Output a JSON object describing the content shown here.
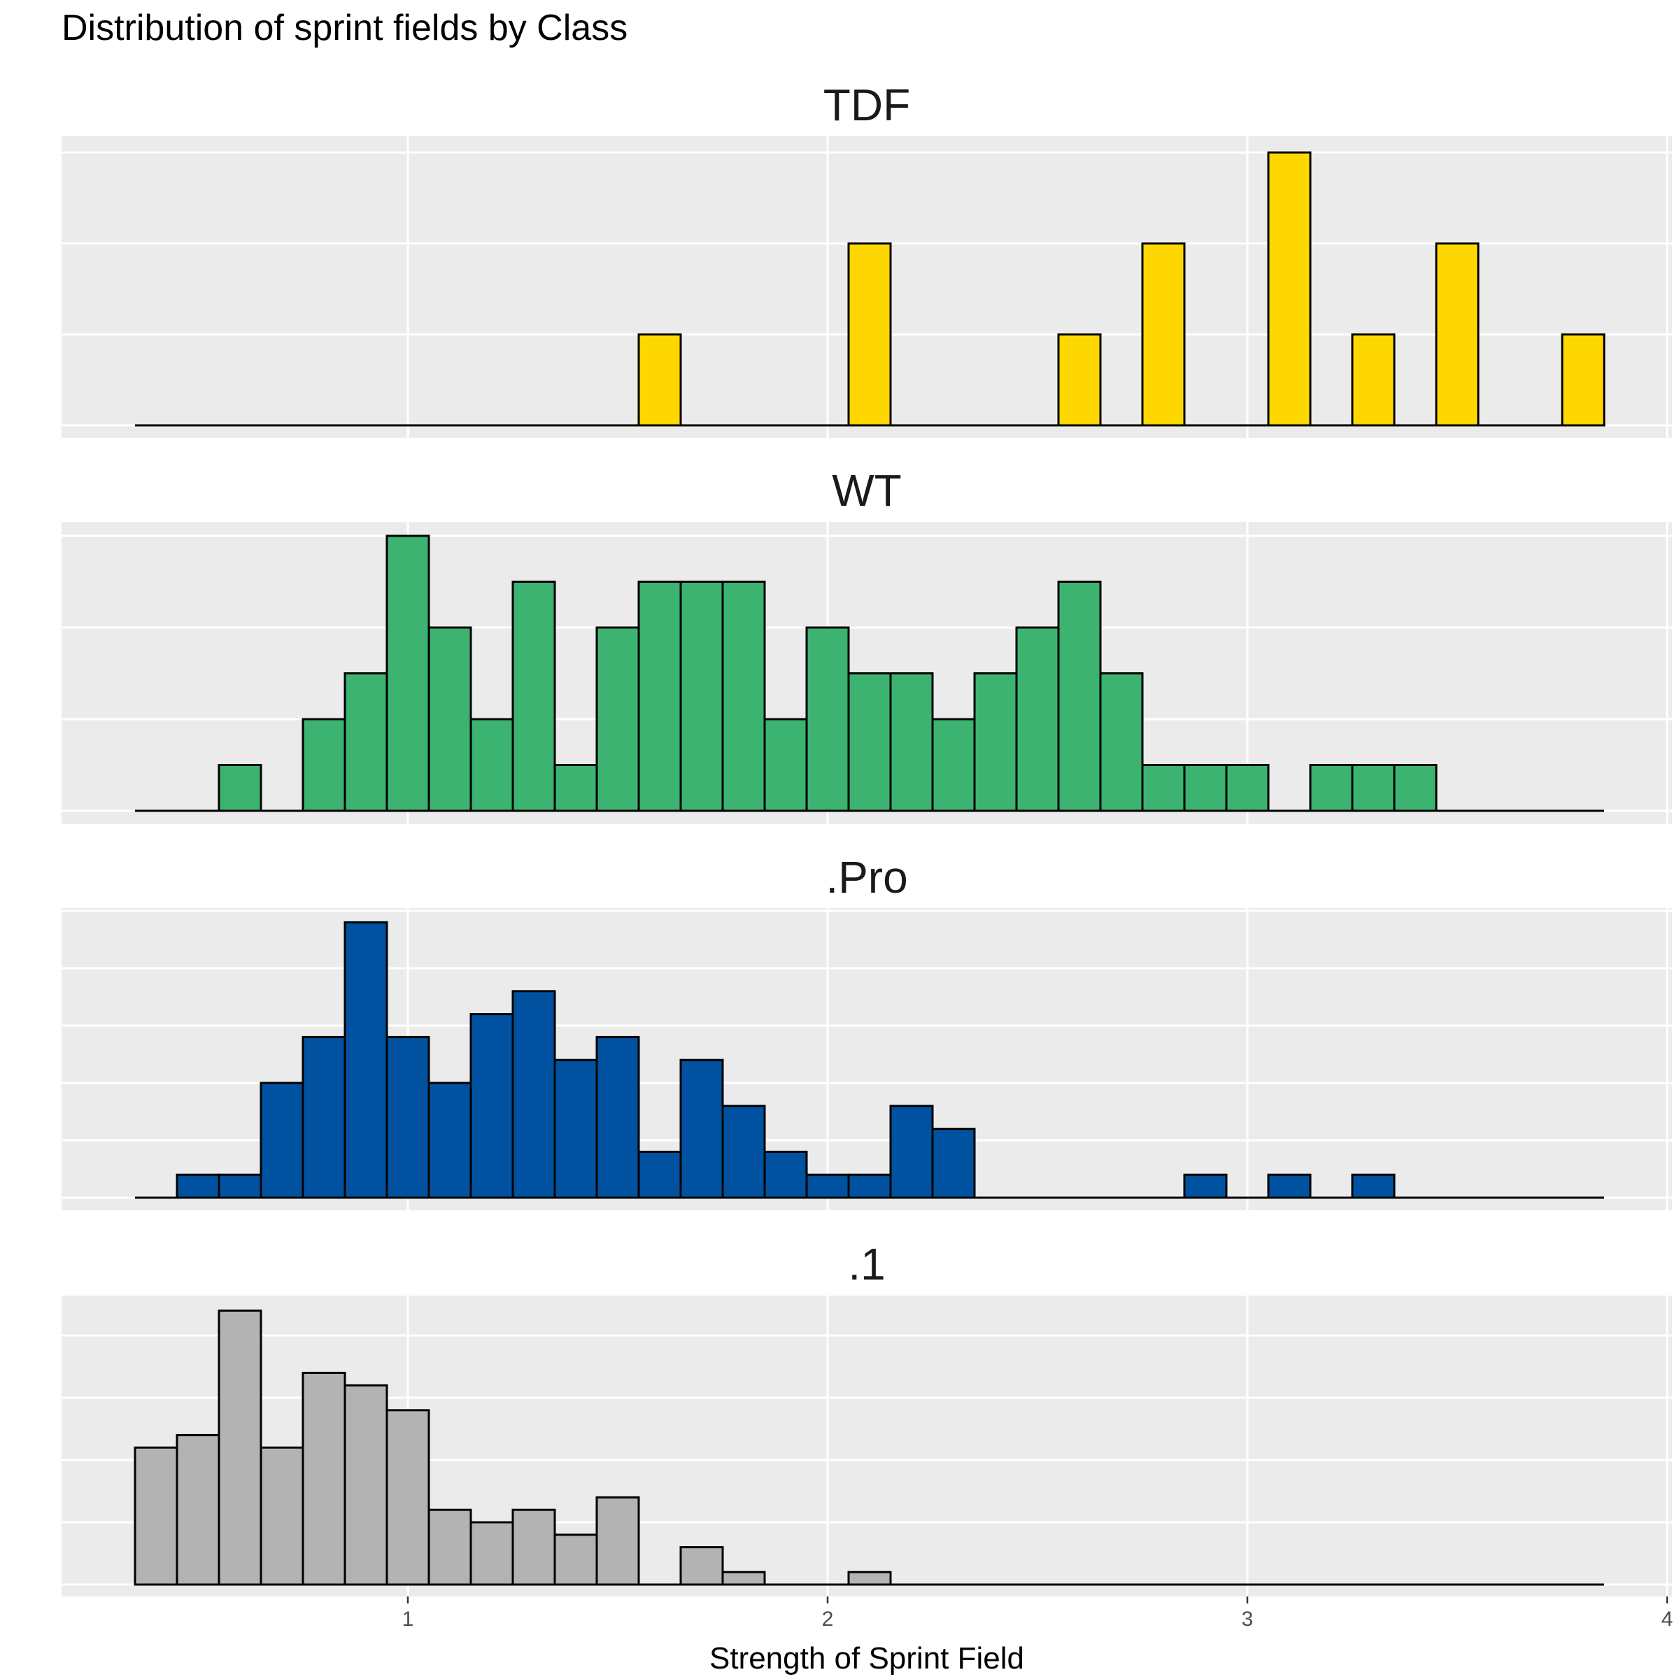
{
  "chart_title": "Distribution of sprint fields by Class",
  "colors": {
    "panel_background": "#ebebeb",
    "gridline": "#ffffff",
    "bar_outline": "#000000"
  },
  "chart_data": {
    "type": "bar",
    "title": "Distribution of sprint fields by Class",
    "xlabel": "Strength of Sprint Field",
    "ylabel": "",
    "xlim": [
      0.3,
      3.85
    ],
    "x_ticks": [
      1,
      2,
      3,
      4
    ],
    "x_tick_labels": [
      "1",
      "2",
      "3",
      "4"
    ],
    "bin_width": 0.1,
    "bin_starts": [
      0.35,
      0.45,
      0.55,
      0.65,
      0.75,
      0.85,
      0.95,
      1.05,
      1.15,
      1.25,
      1.35,
      1.45,
      1.55,
      1.65,
      1.75,
      1.85,
      1.95,
      2.05,
      2.15,
      2.25,
      2.35,
      2.45,
      2.55,
      2.65,
      2.75,
      2.85,
      2.95,
      3.05,
      3.15,
      3.25,
      3.35,
      3.45,
      3.55,
      3.65,
      3.75
    ],
    "grid": true,
    "y_axis_labels_shown": false,
    "facets": [
      {
        "label": "TDF",
        "color": "#FFD700",
        "ylim": [
          0,
          3.2
        ],
        "y_gridlines": [
          0,
          1,
          2,
          3
        ],
        "counts": [
          0,
          0,
          0,
          0,
          0,
          0,
          0,
          0,
          0,
          0,
          0,
          0,
          1,
          0,
          0,
          0,
          0,
          2,
          0,
          0,
          0,
          0,
          1,
          0,
          2,
          0,
          0,
          3,
          0,
          1,
          0,
          2,
          0,
          0,
          1
        ]
      },
      {
        "label": "WT",
        "color": "#3CB371",
        "ylim": [
          0,
          6.4
        ],
        "y_gridlines": [
          0,
          2,
          4,
          6
        ],
        "counts": [
          0,
          0,
          1,
          0,
          2,
          3,
          6,
          4,
          2,
          5,
          1,
          4,
          5,
          5,
          5,
          2,
          4,
          3,
          3,
          2,
          3,
          4,
          5,
          3,
          1,
          1,
          1,
          0,
          1,
          1,
          1,
          0,
          0,
          0,
          0
        ]
      },
      {
        "label": ".Pro",
        "color": "#0052A0",
        "ylim": [
          0,
          12.2
        ],
        "y_gridlines": [
          0,
          2.5,
          5,
          7.5,
          10,
          12.5
        ],
        "counts": [
          0,
          1,
          1,
          5,
          7,
          12,
          7,
          5,
          8,
          9,
          6,
          7,
          2,
          6,
          4,
          2,
          1,
          1,
          4,
          3,
          0,
          0,
          0,
          0,
          0,
          1,
          0,
          1,
          0,
          1,
          0,
          0,
          0,
          0,
          0
        ]
      },
      {
        "label": ".1",
        "color": "#B3B3B3",
        "ylim": [
          0,
          22.5
        ],
        "y_gridlines": [
          0,
          5,
          10,
          15,
          20
        ],
        "counts": [
          11,
          12,
          22,
          11,
          17,
          16,
          14,
          6,
          5,
          6,
          4,
          7,
          0,
          3,
          1,
          0,
          0,
          1,
          0,
          0,
          0,
          0,
          0,
          0,
          0,
          0,
          0,
          0,
          0,
          0,
          0,
          0,
          0,
          0,
          0
        ]
      }
    ]
  }
}
